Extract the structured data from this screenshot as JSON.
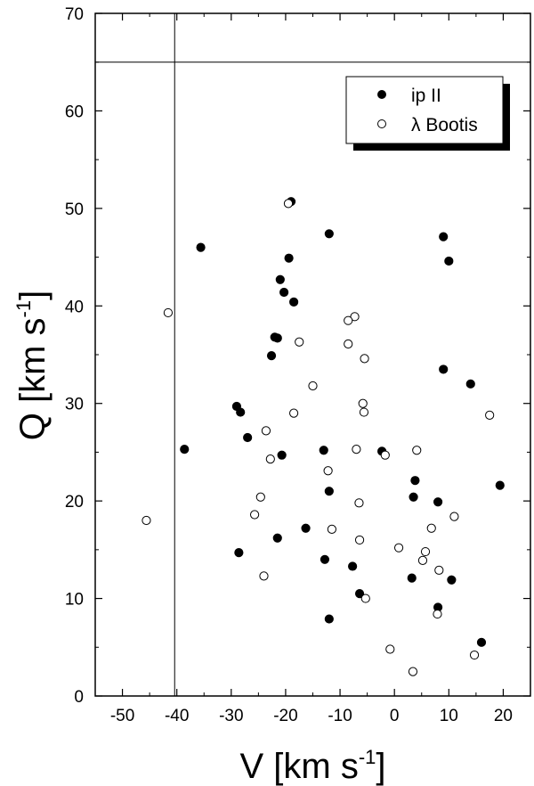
{
  "chart_data": {
    "type": "scatter",
    "xlabel": "V [km s",
    "xlabel_sup": "-1",
    "xlabel_close": "]",
    "ylabel": "Q [km s",
    "ylabel_sup": "-1",
    "ylabel_close": "]",
    "xlim": [
      -55,
      25
    ],
    "ylim": [
      0,
      70
    ],
    "x_ticks": [
      -50,
      -40,
      -30,
      -20,
      -10,
      0,
      10,
      20
    ],
    "y_ticks": [
      0,
      10,
      20,
      30,
      40,
      50,
      60,
      70
    ],
    "x_tick_labels": [
      "-50",
      "-40",
      "-30",
      "-20",
      "-10",
      "0",
      "10",
      "20"
    ],
    "y_tick_labels": [
      "0",
      "10",
      "20",
      "30",
      "40",
      "50",
      "60",
      "70"
    ],
    "reference_lines": {
      "vertical_x": -40.4,
      "horizontal_y": 65
    },
    "legend": {
      "position": "top-right",
      "shadow": true
    },
    "series": [
      {
        "name": "ip II",
        "marker": "filled-circle",
        "points": [
          [
            -19,
            50.7
          ],
          [
            -12,
            47.4
          ],
          [
            9,
            47.1
          ],
          [
            -35.6,
            46
          ],
          [
            -19.4,
            44.9
          ],
          [
            10,
            44.6
          ],
          [
            -21,
            42.7
          ],
          [
            -20.3,
            41.4
          ],
          [
            -18.5,
            40.4
          ],
          [
            -22,
            36.8
          ],
          [
            -21.5,
            36.7
          ],
          [
            -22.6,
            34.9
          ],
          [
            9,
            33.5
          ],
          [
            14,
            32
          ],
          [
            -29,
            29.7
          ],
          [
            -28.3,
            29.1
          ],
          [
            -27,
            26.5
          ],
          [
            -38.6,
            25.3
          ],
          [
            -13,
            25.2
          ],
          [
            -2.3,
            25.1
          ],
          [
            -20.7,
            24.7
          ],
          [
            3.8,
            22.1
          ],
          [
            19.4,
            21.6
          ],
          [
            -12,
            21
          ],
          [
            3.5,
            20.4
          ],
          [
            8,
            19.9
          ],
          [
            -16.3,
            17.2
          ],
          [
            -21.5,
            16.2
          ],
          [
            -28.6,
            14.7
          ],
          [
            -12.8,
            14
          ],
          [
            -7.7,
            13.3
          ],
          [
            3.2,
            12.1
          ],
          [
            10.5,
            11.9
          ],
          [
            -6.4,
            10.5
          ],
          [
            8,
            9.1
          ],
          [
            -12,
            7.9
          ],
          [
            16,
            5.5
          ]
        ]
      },
      {
        "name": "λ Bootis",
        "marker": "open-circle",
        "points": [
          [
            -19.5,
            50.5
          ],
          [
            -41.6,
            39.3
          ],
          [
            -7.3,
            38.9
          ],
          [
            -8.5,
            38.5
          ],
          [
            -17.5,
            36.3
          ],
          [
            -8.5,
            36.1
          ],
          [
            -5.5,
            34.6
          ],
          [
            -15,
            31.8
          ],
          [
            -5.8,
            30
          ],
          [
            -5.6,
            29.1
          ],
          [
            -18.5,
            29
          ],
          [
            17.5,
            28.8
          ],
          [
            -23.6,
            27.2
          ],
          [
            -7,
            25.3
          ],
          [
            4.1,
            25.2
          ],
          [
            -1.7,
            24.7
          ],
          [
            -22.8,
            24.3
          ],
          [
            -12.2,
            23.1
          ],
          [
            -24.6,
            20.4
          ],
          [
            -6.5,
            19.8
          ],
          [
            -25.7,
            18.6
          ],
          [
            11,
            18.4
          ],
          [
            -45.6,
            18
          ],
          [
            6.8,
            17.2
          ],
          [
            -11.5,
            17.1
          ],
          [
            -6.4,
            16
          ],
          [
            0.8,
            15.2
          ],
          [
            5.7,
            14.8
          ],
          [
            5.2,
            13.9
          ],
          [
            8.2,
            12.9
          ],
          [
            -24,
            12.3
          ],
          [
            -5.3,
            10
          ],
          [
            7.9,
            8.4
          ],
          [
            -0.8,
            4.8
          ],
          [
            14.7,
            4.2
          ],
          [
            3.4,
            2.5
          ]
        ]
      }
    ]
  }
}
